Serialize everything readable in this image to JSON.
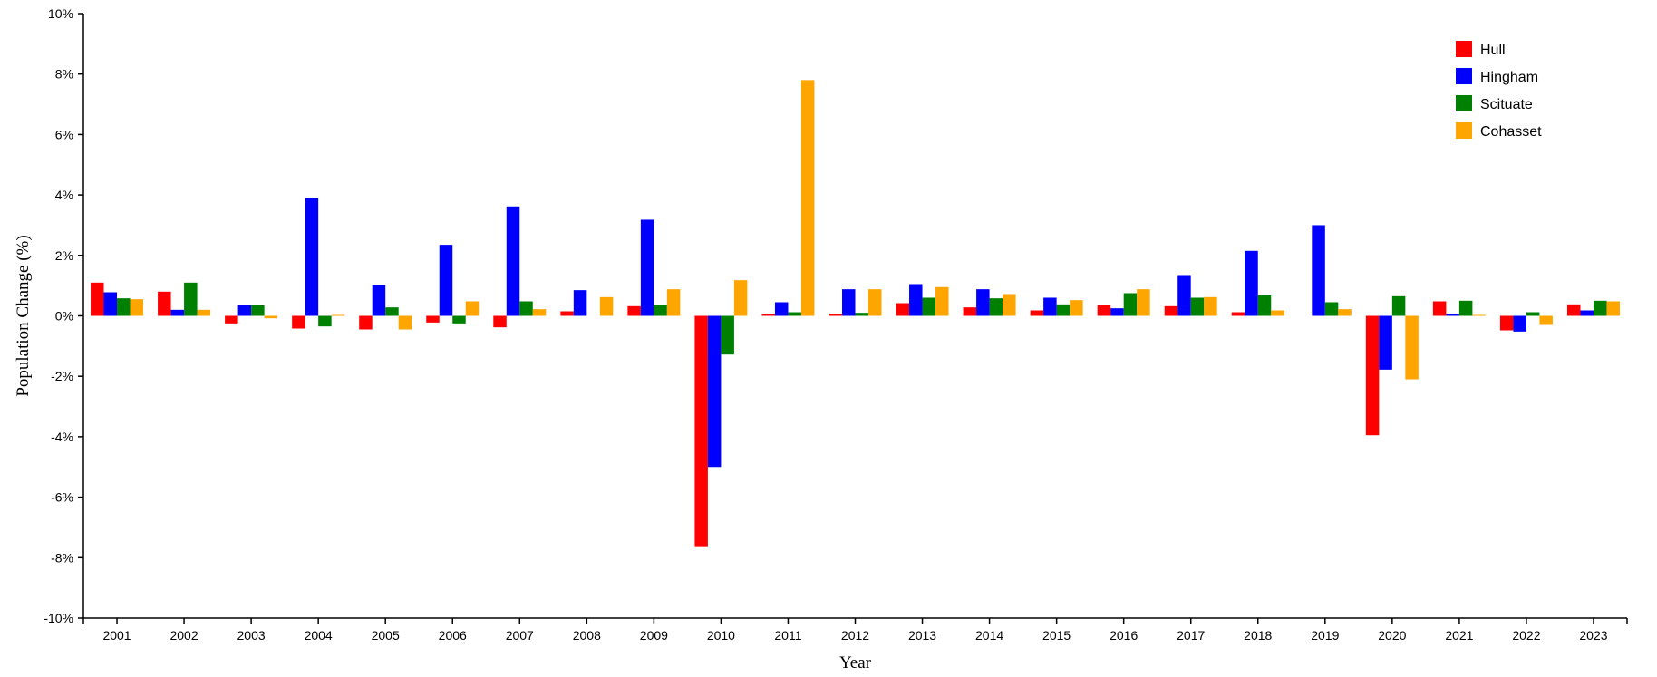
{
  "chart_data": {
    "type": "bar",
    "title": "",
    "xlabel": "Year",
    "ylabel": "Population Change (%)",
    "ylim": [
      -10,
      10
    ],
    "y_ticks": [
      -10,
      -8,
      -6,
      -4,
      -2,
      0,
      2,
      4,
      6,
      8,
      10
    ],
    "y_tick_format": "percent",
    "grid": false,
    "legend_position": "top-right",
    "categories": [
      "2001",
      "2002",
      "2003",
      "2004",
      "2005",
      "2006",
      "2007",
      "2008",
      "2009",
      "2010",
      "2011",
      "2012",
      "2013",
      "2014",
      "2015",
      "2016",
      "2017",
      "2018",
      "2019",
      "2020",
      "2021",
      "2022",
      "2023"
    ],
    "series": [
      {
        "name": "Hull",
        "color": "#ff0000",
        "values": [
          1.1,
          0.8,
          -0.25,
          -0.42,
          -0.45,
          -0.22,
          -0.38,
          0.15,
          0.32,
          -7.65,
          0.07,
          0.07,
          0.42,
          0.28,
          0.18,
          0.35,
          0.32,
          0.12,
          0.0,
          -3.95,
          0.48,
          -0.48,
          0.38
        ]
      },
      {
        "name": "Hingham",
        "color": "#0000ff",
        "values": [
          0.78,
          0.2,
          0.35,
          3.9,
          1.02,
          2.35,
          3.62,
          0.85,
          3.18,
          -5.0,
          0.45,
          0.88,
          1.05,
          0.88,
          0.6,
          0.25,
          1.35,
          2.15,
          3.0,
          -1.78,
          0.07,
          -0.52,
          0.18
        ]
      },
      {
        "name": "Scituate",
        "color": "#008000",
        "values": [
          0.58,
          1.1,
          0.35,
          -0.35,
          0.28,
          -0.25,
          0.48,
          0.0,
          0.35,
          -1.28,
          0.12,
          0.1,
          0.6,
          0.58,
          0.38,
          0.75,
          0.6,
          0.68,
          0.45,
          0.65,
          0.5,
          0.12,
          0.5
        ]
      },
      {
        "name": "Cohasset",
        "color": "#ffa500",
        "values": [
          0.55,
          0.2,
          -0.08,
          0.03,
          -0.45,
          0.48,
          0.22,
          0.62,
          0.88,
          1.18,
          7.8,
          0.88,
          0.95,
          0.72,
          0.52,
          0.88,
          0.62,
          0.18,
          0.22,
          -2.1,
          0.03,
          -0.3,
          0.48
        ]
      }
    ]
  }
}
